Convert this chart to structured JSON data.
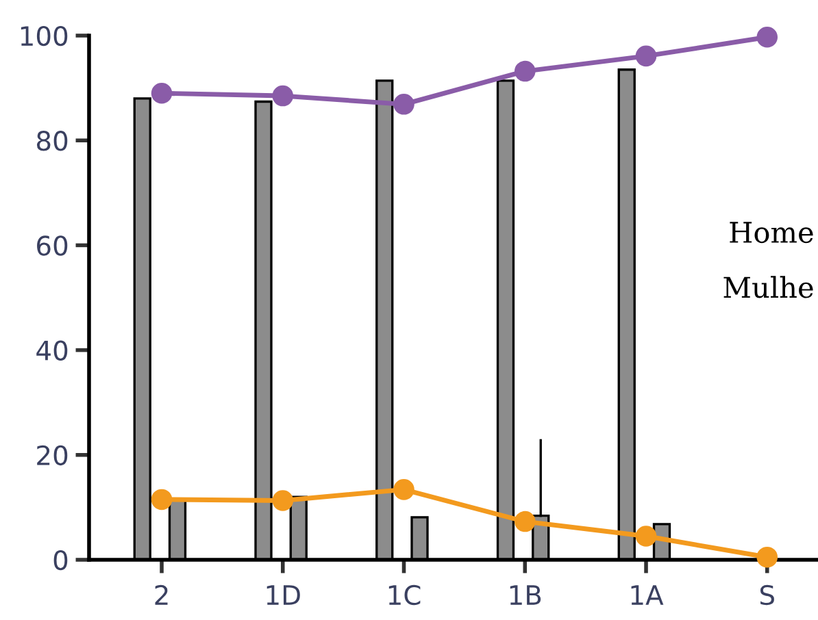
{
  "chart_data": {
    "type": "bar",
    "categories": [
      "2",
      "1D",
      "1C",
      "1B",
      "1A",
      "S"
    ],
    "series": [
      {
        "color": "#8c8c8c",
        "values": [
          88,
          87.4,
          91.4,
          91.4,
          93.5,
          null
        ]
      },
      {
        "color": "#8c8c8c",
        "values": [
          11.5,
          12,
          8.1,
          8.4,
          6.8,
          null
        ],
        "errors": [
          null,
          null,
          null,
          [
            8.4,
            22.8
          ],
          null,
          null
        ]
      },
      {
        "type": "line",
        "color": "#8a5ca8",
        "values": [
          89,
          88.5,
          86.9,
          93.2,
          96.1,
          99.7
        ]
      },
      {
        "type": "line",
        "color": "#f39a1e",
        "values": [
          11.5,
          11.3,
          13.4,
          7.3,
          4.5,
          0.5
        ]
      }
    ],
    "marker": "circle",
    "ylim": [
      0,
      100
    ],
    "yticks": [
      0,
      20,
      40,
      60,
      80,
      100
    ],
    "grid": false,
    "annotations": [
      "Home",
      "Mulhe"
    ]
  }
}
